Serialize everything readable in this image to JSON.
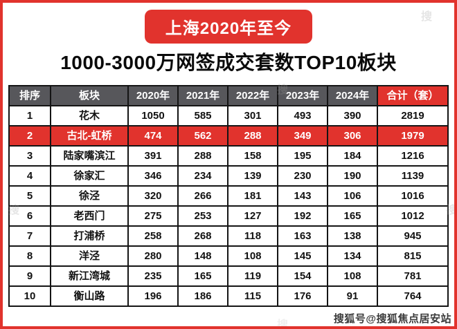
{
  "banner": {
    "title": "上海2020年至今"
  },
  "subtitle": "1000-3000万网签成交套数TOP10板块",
  "chart_data": {
    "type": "table",
    "title": "上海2020年至今 1000-3000万网签成交套数TOP10板块",
    "columns": [
      "排序",
      "板块",
      "2020年",
      "2021年",
      "2022年",
      "2023年",
      "2024年",
      "合计（套）"
    ],
    "rows": [
      [
        "1",
        "花木",
        "1050",
        "585",
        "301",
        "493",
        "390",
        "2819"
      ],
      [
        "2",
        "古北-虹桥",
        "474",
        "562",
        "288",
        "349",
        "306",
        "1979"
      ],
      [
        "3",
        "陆家嘴滨江",
        "391",
        "288",
        "158",
        "195",
        "184",
        "1216"
      ],
      [
        "4",
        "徐家汇",
        "346",
        "234",
        "139",
        "230",
        "190",
        "1139"
      ],
      [
        "5",
        "徐泾",
        "320",
        "266",
        "181",
        "143",
        "106",
        "1016"
      ],
      [
        "6",
        "老西门",
        "275",
        "253",
        "127",
        "192",
        "165",
        "1012"
      ],
      [
        "7",
        "打浦桥",
        "258",
        "268",
        "118",
        "163",
        "138",
        "945"
      ],
      [
        "8",
        "洋泾",
        "280",
        "148",
        "108",
        "145",
        "134",
        "815"
      ],
      [
        "9",
        "新江湾城",
        "235",
        "165",
        "119",
        "154",
        "108",
        "781"
      ],
      [
        "10",
        "衡山路",
        "196",
        "186",
        "115",
        "176",
        "91",
        "764"
      ]
    ],
    "highlighted_row_index": 1,
    "highlighted_row_name": "古北-虹桥"
  },
  "watermark": {
    "text": "搜狐号@搜狐焦点居安站",
    "tile_char": "搜"
  },
  "colors": {
    "accent_red": "#e1332d",
    "header_gray": "#57575b",
    "grid_black": "#141414",
    "background": "#ffffff"
  }
}
